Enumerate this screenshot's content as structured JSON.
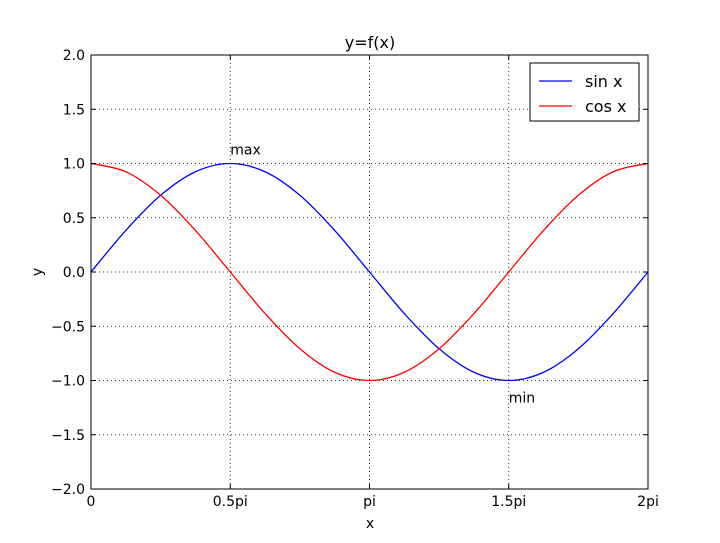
{
  "chart_data": {
    "type": "line",
    "title": "y=f(x)",
    "xlabel": "x",
    "ylabel": "y",
    "xlim": [
      0,
      6.283185307
    ],
    "ylim": [
      -2.0,
      2.0
    ],
    "grid": true,
    "legend_position": "top-right",
    "x_ticks": [
      {
        "value": 0,
        "label": "0"
      },
      {
        "value": 1.570796327,
        "label": "0.5pi"
      },
      {
        "value": 3.141592654,
        "label": "pi"
      },
      {
        "value": 4.71238898,
        "label": "1.5pi"
      },
      {
        "value": 6.283185307,
        "label": "2pi"
      }
    ],
    "y_ticks": [
      {
        "value": 2.0,
        "label": "2.0"
      },
      {
        "value": 1.5,
        "label": "1.5"
      },
      {
        "value": 1.0,
        "label": "1.0"
      },
      {
        "value": 0.5,
        "label": "0.5"
      },
      {
        "value": 0.0,
        "label": "0.0"
      },
      {
        "value": -0.5,
        "label": "−0.5"
      },
      {
        "value": -1.0,
        "label": "−1.0"
      },
      {
        "value": -1.5,
        "label": "−1.5"
      },
      {
        "value": -2.0,
        "label": "−2.0"
      }
    ],
    "x": [
      0,
      0.3927,
      0.7854,
      1.1781,
      1.5708,
      1.9635,
      2.3562,
      2.7489,
      3.1416,
      3.5343,
      3.927,
      4.3197,
      4.7124,
      5.1051,
      5.4978,
      5.8905,
      6.2832
    ],
    "series": [
      {
        "name": "sin x",
        "color": "#0000ff",
        "values": [
          0,
          0.383,
          0.707,
          0.924,
          1.0,
          0.924,
          0.707,
          0.383,
          0,
          -0.383,
          -0.707,
          -0.924,
          -1.0,
          -0.924,
          -0.707,
          -0.383,
          0
        ]
      },
      {
        "name": "cos x",
        "color": "#ff0000",
        "values": [
          1.0,
          0.924,
          0.707,
          0.383,
          0,
          -0.383,
          -0.707,
          -0.924,
          -1.0,
          -0.924,
          -0.707,
          -0.383,
          0,
          0.383,
          0.707,
          0.924,
          1.0
        ]
      }
    ],
    "annotations": [
      {
        "text": "max",
        "x": 1.5708,
        "y": 1.0,
        "placement": "above"
      },
      {
        "text": "min",
        "x": 4.7124,
        "y": -1.0,
        "placement": "below"
      }
    ]
  }
}
